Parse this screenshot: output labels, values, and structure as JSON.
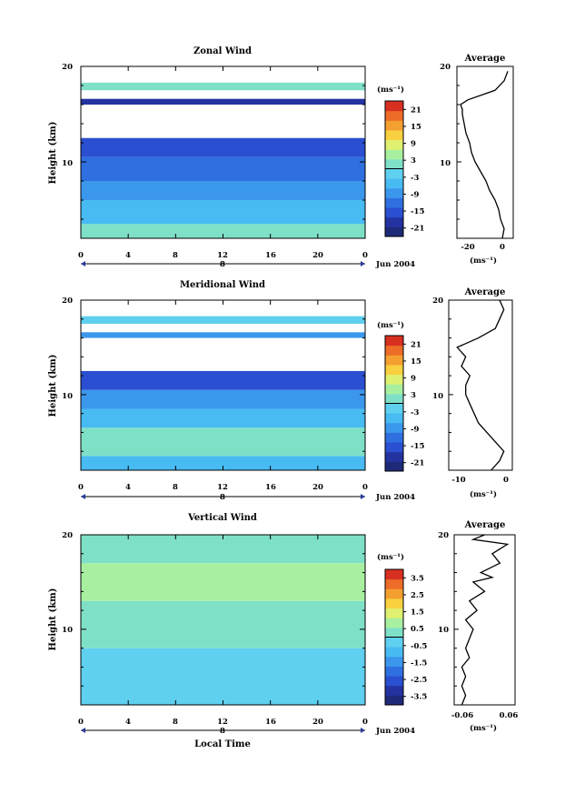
{
  "colors": {
    "palette": [
      "#1e2a78",
      "#2433a0",
      "#2a4fd0",
      "#2f6fe0",
      "#3b97ec",
      "#48bbf2",
      "#5fd0f0",
      "#7fe0c8",
      "#a8f0a0",
      "#e0f070",
      "#f8d040",
      "#f4a030",
      "#ec6c28",
      "#d83020"
    ],
    "axis": "#000000",
    "profile": "#000000"
  },
  "panels": [
    {
      "title": "Zonal Wind",
      "ylabel": "Height (km)",
      "yticks": [
        "20",
        "10"
      ],
      "xticks": [
        "0",
        "4",
        "8",
        "12",
        "16",
        "20",
        "0"
      ],
      "xlabel2": "8",
      "date_label": "Jun 2004",
      "xlabel": "",
      "unit_label": "(ms⁻¹)",
      "cbar_ticks": [
        "21",
        "15",
        "9",
        "3",
        "-3",
        "-9",
        "-15",
        "-21"
      ],
      "cbar_range": [
        -24,
        24
      ],
      "avg_title": "Average",
      "avg_yticks": [
        "20",
        "10"
      ],
      "avg_xticks": [
        "-20",
        "0"
      ],
      "avg_xlabel": "(ms⁻¹)"
    },
    {
      "title": "Meridional Wind",
      "ylabel": "Height (km)",
      "yticks": [
        "20",
        "10"
      ],
      "xticks": [
        "0",
        "4",
        "8",
        "12",
        "16",
        "20",
        "0"
      ],
      "xlabel2": "8",
      "date_label": "Jun 2004",
      "xlabel": "",
      "unit_label": "(ms⁻¹)",
      "cbar_ticks": [
        "21",
        "15",
        "9",
        "3",
        "-3",
        "-9",
        "-15",
        "-21"
      ],
      "cbar_range": [
        -24,
        24
      ],
      "avg_title": "Average",
      "avg_yticks": [
        "20",
        "10"
      ],
      "avg_xticks": [
        "-10",
        "0"
      ],
      "avg_xlabel": "(ms⁻¹)"
    },
    {
      "title": "Vertical Wind",
      "ylabel": "Height (km)",
      "yticks": [
        "20",
        "10"
      ],
      "xticks": [
        "0",
        "4",
        "8",
        "12",
        "16",
        "20",
        "0"
      ],
      "xlabel2": "8",
      "date_label": "Jun 2004",
      "xlabel": "Local Time",
      "unit_label": "(ms⁻¹)",
      "cbar_ticks": [
        "3.5",
        "2.5",
        "1.5",
        "0.5",
        "-0.5",
        "-1.5",
        "-2.5",
        "-3.5"
      ],
      "cbar_range": [
        -4,
        4
      ],
      "avg_title": "Average",
      "avg_yticks": [
        "20",
        "10"
      ],
      "avg_xticks": [
        "-0.06",
        "0.06"
      ],
      "avg_xlabel": "(ms⁻¹)"
    }
  ],
  "chart_data": [
    {
      "type": "heatmap",
      "title": "Zonal Wind",
      "xlabel": "",
      "ylabel": "Height (km)",
      "xlim": [
        0,
        24
      ],
      "ylim": [
        2,
        20
      ],
      "color_range": [
        -24,
        24
      ],
      "height_bands": [
        {
          "y0": 2.0,
          "y1": 3.5,
          "value": 1
        },
        {
          "y0": 3.5,
          "y1": 6.0,
          "value": -4
        },
        {
          "y0": 6.0,
          "y1": 8.0,
          "value": -7
        },
        {
          "y0": 8.0,
          "y1": 10.5,
          "value": -12
        },
        {
          "y0": 10.5,
          "y1": 12.5,
          "value": -17
        },
        {
          "y0": 16.0,
          "y1": 16.6,
          "value": -20
        },
        {
          "y0": 17.5,
          "y1": 18.3,
          "value": 0
        }
      ]
    },
    {
      "type": "line",
      "title": "Average",
      "xlabel": "(ms⁻¹)",
      "ylabel": "",
      "xlim": [
        -26,
        5
      ],
      "ylim": [
        2,
        20
      ],
      "x": [
        -1,
        0,
        -2,
        -3,
        -5,
        -8,
        -10,
        -13,
        -16,
        -18,
        -19,
        -21,
        -22,
        -23,
        -23,
        -24,
        -20,
        -5,
        0,
        2
      ],
      "y": [
        2,
        3,
        4,
        5,
        6,
        7,
        8,
        9,
        10,
        11,
        12,
        13,
        14,
        15,
        15.5,
        16,
        16.5,
        17.5,
        18.5,
        19.5
      ]
    },
    {
      "type": "heatmap",
      "title": "Meridional Wind",
      "xlabel": "",
      "ylabel": "Height (km)",
      "xlim": [
        0,
        24
      ],
      "ylim": [
        2,
        20
      ],
      "color_range": [
        -24,
        24
      ],
      "height_bands": [
        {
          "y0": 2.0,
          "y1": 3.5,
          "value": -4
        },
        {
          "y0": 3.5,
          "y1": 6.5,
          "value": 1
        },
        {
          "y0": 6.5,
          "y1": 8.5,
          "value": -5
        },
        {
          "y0": 8.5,
          "y1": 10.5,
          "value": -9
        },
        {
          "y0": 10.5,
          "y1": 12.5,
          "value": -14
        },
        {
          "y0": 16.0,
          "y1": 16.6,
          "value": -9
        },
        {
          "y0": 17.5,
          "y1": 18.3,
          "value": -2
        }
      ]
    },
    {
      "type": "line",
      "title": "Average",
      "xlabel": "(ms⁻¹)",
      "ylabel": "",
      "xlim": [
        -13,
        2
      ],
      "ylim": [
        2,
        20
      ],
      "x": [
        -3,
        -1,
        0,
        -2,
        -4,
        -6,
        -7,
        -8,
        -9,
        -9,
        -8,
        -10,
        -9,
        -11,
        -6,
        -2,
        -1,
        0,
        -1
      ],
      "y": [
        2,
        3,
        4,
        5,
        6,
        7,
        8,
        9,
        10,
        11,
        12,
        13,
        14,
        15,
        16,
        17,
        18,
        19,
        20
      ]
    },
    {
      "type": "heatmap",
      "title": "Vertical Wind",
      "xlabel": "Local Time",
      "ylabel": "Height (km)",
      "xlim": [
        0,
        24
      ],
      "ylim": [
        2,
        20
      ],
      "color_range": [
        -4,
        4
      ],
      "height_bands": [
        {
          "y0": 2.0,
          "y1": 8.0,
          "value": -0.4
        },
        {
          "y0": 8.0,
          "y1": 13.0,
          "value": 0.2
        },
        {
          "y0": 13.0,
          "y1": 17.0,
          "value": 0.6
        },
        {
          "y0": 17.0,
          "y1": 20.0,
          "value": 0.3
        }
      ]
    },
    {
      "type": "line",
      "title": "Average",
      "xlabel": "(ms⁻¹)",
      "ylabel": "",
      "xlim": [
        -0.08,
        0.08
      ],
      "ylim": [
        2,
        20
      ],
      "x": [
        -0.06,
        -0.05,
        -0.06,
        -0.05,
        -0.06,
        -0.04,
        -0.05,
        -0.04,
        -0.03,
        -0.05,
        -0.02,
        -0.04,
        0.0,
        -0.03,
        0.02,
        -0.01,
        0.04,
        0.02,
        0.06,
        -0.03,
        0.0
      ],
      "y": [
        2,
        3,
        4,
        5,
        6,
        7,
        8,
        9,
        10,
        11,
        12,
        13,
        14,
        15,
        15.5,
        16,
        17,
        18,
        19,
        19.5,
        20
      ]
    }
  ]
}
